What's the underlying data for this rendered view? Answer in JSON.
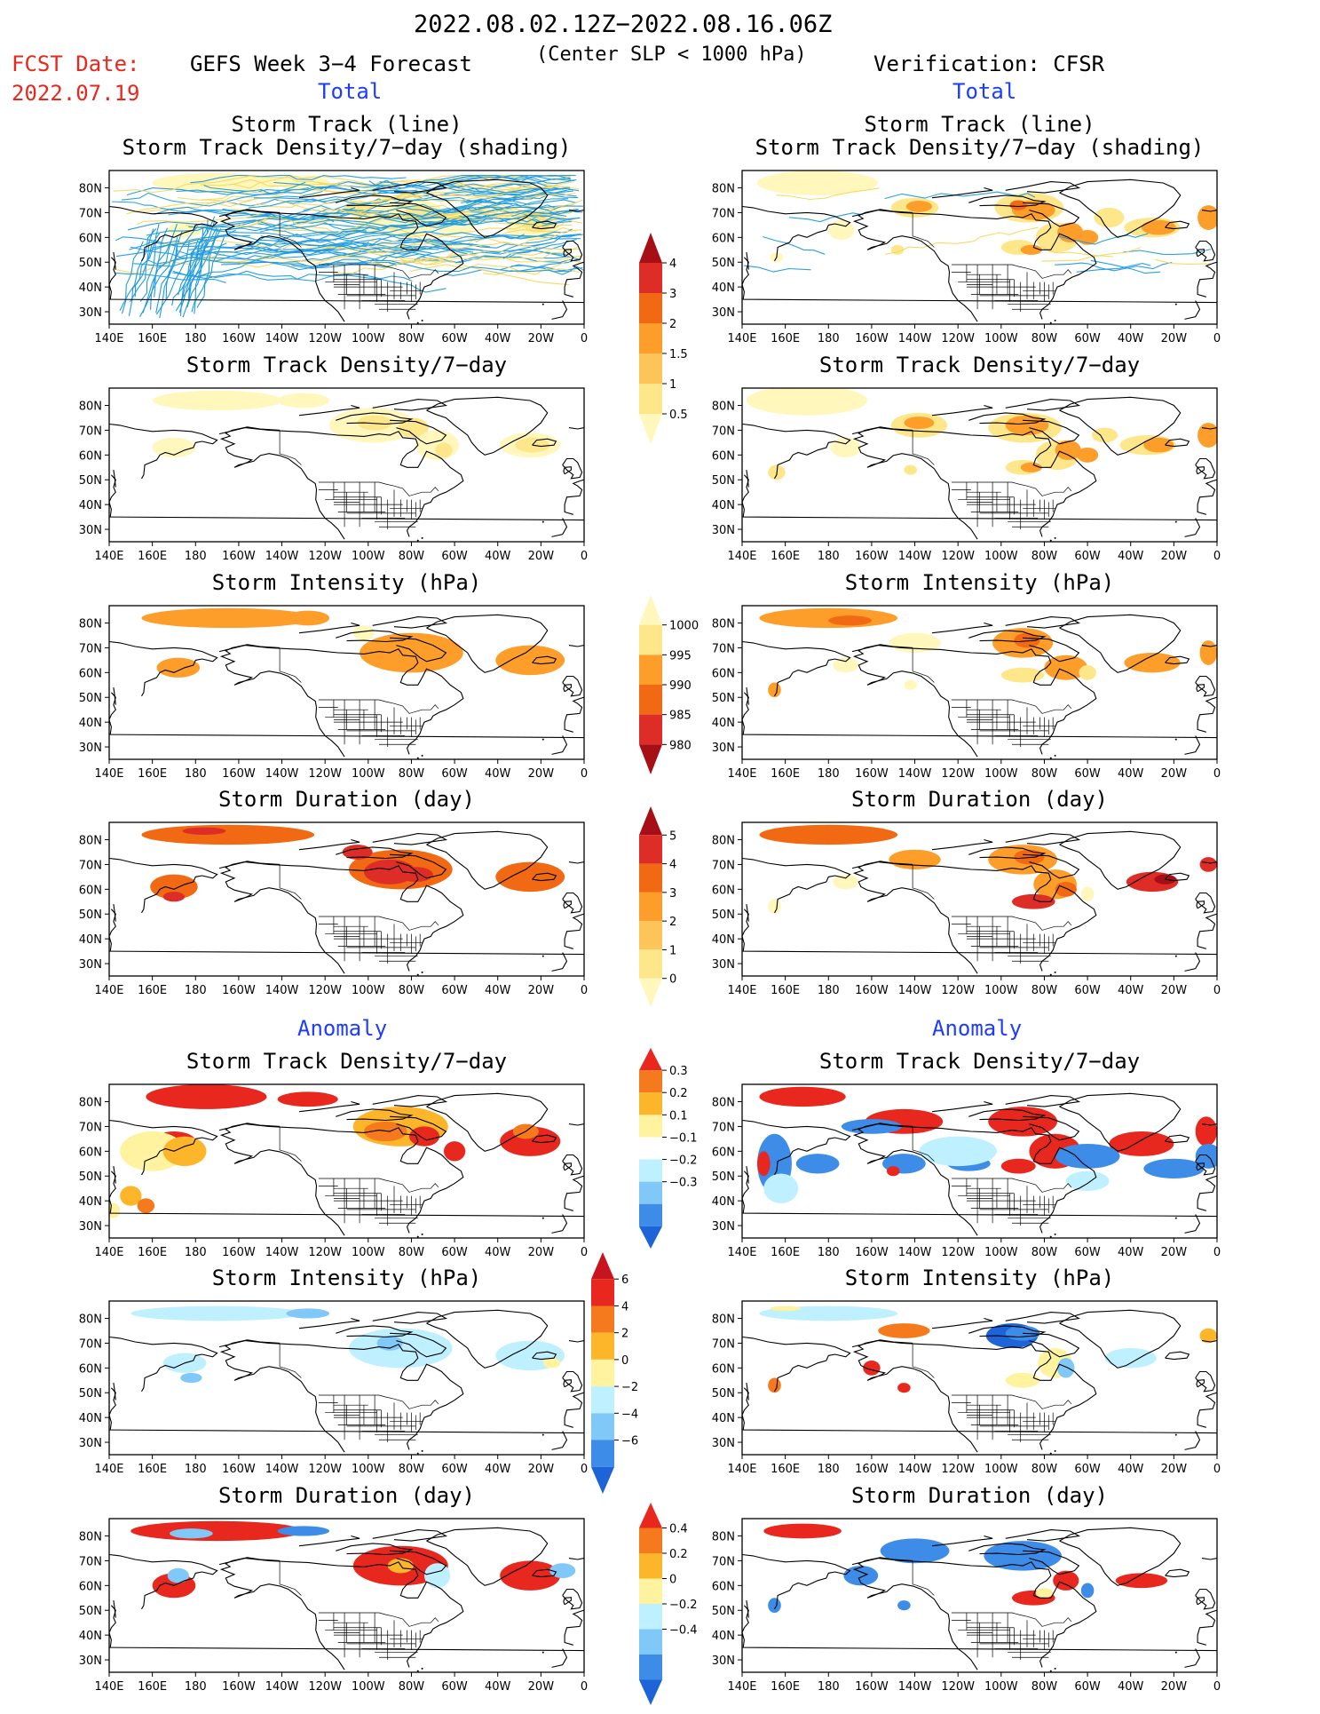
{
  "header": {
    "period": "2022.08.02.12Z−2022.08.16.06Z",
    "fcst_label": "FCST Date:",
    "fcst_date": "2022.07.19",
    "left_title": "GEFS Week 3−4 Forecast",
    "criterion": "(Center SLP < 1000 hPa)",
    "right_title": "Verification: CFSR"
  },
  "sections": {
    "total": "Total",
    "anomaly": "Anomaly"
  },
  "panel_titles": {
    "track_line": "Storm Track (line)",
    "track_density_shading": "Storm Track Density/7−day (shading)",
    "track_density": "Storm Track Density/7−day",
    "intensity": "Storm Intensity (hPa)",
    "duration": "Storm Duration (day)"
  },
  "axes": {
    "lat_labels": [
      "80N",
      "70N",
      "60N",
      "50N",
      "40N",
      "30N"
    ],
    "lon_labels": [
      "140E",
      "160E",
      "180",
      "160W",
      "140W",
      "120W",
      "100W",
      "80W",
      "60W",
      "40W",
      "20W",
      "0"
    ]
  },
  "colorbars": [
    {
      "id": "density",
      "labels": [
        "4",
        "3",
        "2",
        "1.5",
        "1",
        "0.5"
      ],
      "colors": [
        "#a50f15",
        "#de2d26",
        "#f16913",
        "#fd9e2a",
        "#fdc45a",
        "#fee78a",
        "#fff7bc"
      ]
    },
    {
      "id": "intensity",
      "labels": [
        "1000",
        "995",
        "990",
        "985",
        "980"
      ],
      "colors": [
        "#fff7bc",
        "#fee78a",
        "#fd9e2a",
        "#f16913",
        "#de2d26",
        "#a50f15"
      ]
    },
    {
      "id": "duration",
      "labels": [
        "5",
        "4",
        "3",
        "2",
        "1",
        "0"
      ],
      "colors": [
        "#a50f15",
        "#de2d26",
        "#f16913",
        "#fd9e2a",
        "#fdc45a",
        "#fee78a",
        "#fff7bc"
      ]
    },
    {
      "id": "anom_density",
      "labels": [
        "0.3",
        "0.2",
        "0.1",
        "−0.1",
        "−0.2",
        "−0.3"
      ],
      "colors": [
        "#e8281e",
        "#f57a1e",
        "#fdb52a",
        "#fff3a0",
        "#ffffff",
        "#bff0ff",
        "#7fc8f8",
        "#3c8ce8",
        "#1c64d8"
      ]
    },
    {
      "id": "anom_intensity",
      "labels": [
        "6",
        "4",
        "2",
        "0",
        "−2",
        "−4",
        "−6"
      ],
      "colors": [
        "#c8141e",
        "#e8281e",
        "#f57a1e",
        "#fdb52a",
        "#fff3a0",
        "#bff0ff",
        "#7fc8f8",
        "#3c8ce8",
        "#1c64d8"
      ]
    },
    {
      "id": "anom_duration",
      "labels": [
        "0.4",
        "0.2",
        "0",
        "−0.2",
        "−0.4"
      ],
      "colors": [
        "#e8281e",
        "#f57a1e",
        "#fdb52a",
        "#fff3a0",
        "#bff0ff",
        "#7fc8f8",
        "#3c8ce8",
        "#1c64d8"
      ]
    }
  ],
  "shading_colors": {
    "pale": "#fff7bc",
    "light": "#fee78a",
    "orange": "#fd9e2a",
    "dark_orange": "#f16913",
    "red": "#de2d26",
    "dark_red": "#a50f15",
    "anom_red": "#e8281e",
    "anom_orange": "#f57a1e",
    "anom_yellow": "#fdb52a",
    "anom_pale_yellow": "#fff3a0",
    "anom_pale_blue": "#bff0ff",
    "anom_light_blue": "#7fc8f8",
    "anom_blue": "#3c8ce8",
    "anom_dark_blue": "#1c64d8",
    "track_line": "#1e9be0"
  }
}
